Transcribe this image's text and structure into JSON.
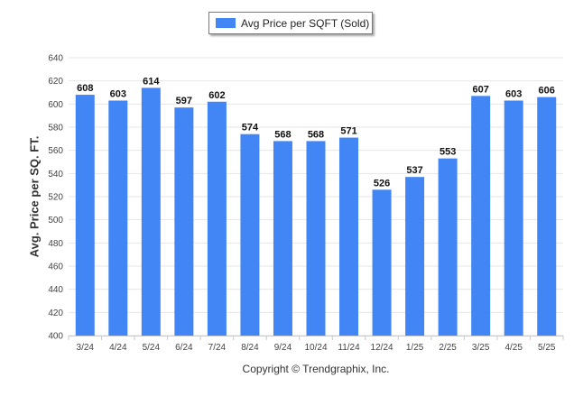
{
  "legend": {
    "label": "Avg Price per SQFT (Sold)",
    "color": "#4285f4"
  },
  "credit": "Copyright © Trendgraphix, Inc.",
  "chart_data": {
    "type": "bar",
    "title": "",
    "xlabel": "",
    "ylabel": "Avg. Price per SQ. FT.",
    "ylim": [
      400,
      640
    ],
    "yticks": [
      400,
      420,
      440,
      460,
      480,
      500,
      520,
      540,
      560,
      580,
      600,
      620,
      640
    ],
    "grid": true,
    "legend_position": "top-center",
    "categories": [
      "3/24",
      "4/24",
      "5/24",
      "6/24",
      "7/24",
      "8/24",
      "9/24",
      "10/24",
      "11/24",
      "12/24",
      "1/25",
      "2/25",
      "3/25",
      "4/25",
      "5/25"
    ],
    "series": [
      {
        "name": "Avg Price per SQFT (Sold)",
        "color": "#4285f4",
        "values": [
          608,
          603,
          614,
          597,
          602,
          574,
          568,
          568,
          571,
          526,
          537,
          553,
          607,
          603,
          606
        ]
      }
    ]
  }
}
